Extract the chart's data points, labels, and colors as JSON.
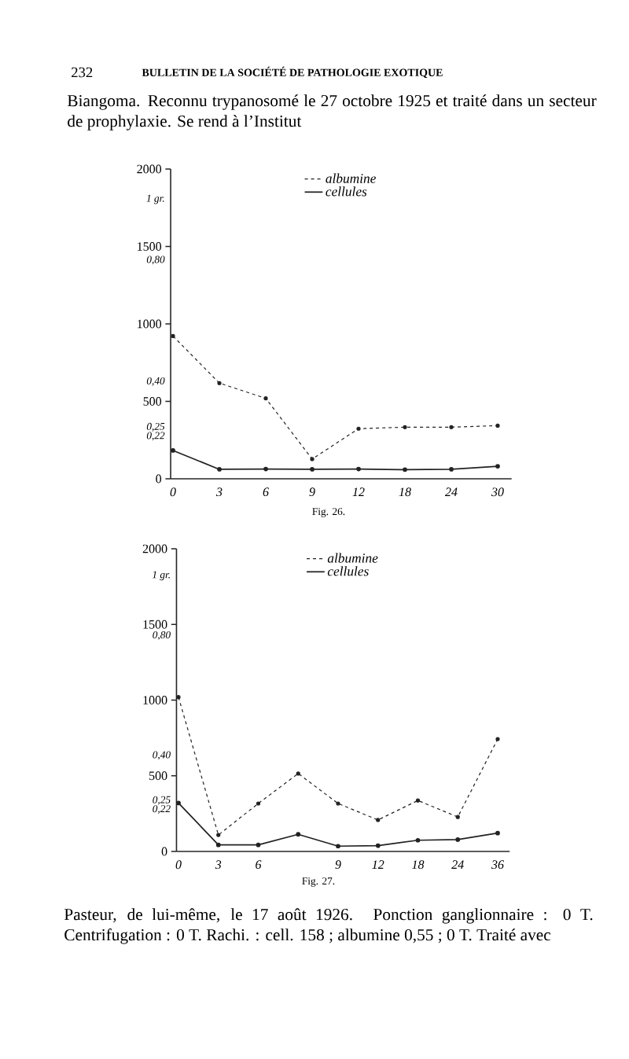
{
  "chart_data": [
    {
      "type": "line",
      "categories": [
        "0",
        "3",
        "6",
        "9",
        "12",
        "18",
        "24",
        "30"
      ],
      "series": [
        {
          "name": "albumine",
          "color": "#222222",
          "line_style": "dashed",
          "axis": "y2",
          "values": [
            0.55,
            0.395,
            0.345,
            0.145,
            0.245,
            0.25,
            0.25,
            0.255
          ]
        },
        {
          "name": "cellules",
          "color": "#222222",
          "line_style": "solid",
          "values": [
            183,
            61,
            63,
            61,
            63,
            59,
            61,
            81
          ]
        }
      ],
      "ylim": [
        0,
        2000
      ],
      "yticks": [
        0,
        500,
        1000,
        1500,
        2000
      ],
      "y2lim": [
        0.08,
        1.1
      ],
      "y2ticks": [
        {
          "value": 1,
          "label": "1 gr."
        },
        {
          "value": 0.8,
          "label": "0,80"
        },
        {
          "value": 0.4,
          "label": "0,40"
        },
        {
          "value": 0.25,
          "label": "0,25"
        },
        {
          "value": 0.22,
          "label": "0,22"
        }
      ],
      "marker": "circle",
      "legend": "top",
      "annotations": [
        "232",
        "BULLETIN DE LA SOCIÉTÉ DE PATHOLOGIE EXOTIQUE",
        "Biangoma. Reconnu trypanosomé le 27 octobre 1925 et traité dans un secteur de prophylaxie. Se rend à l’Institut",
        "Fig. 26."
      ]
    },
    {
      "type": "line",
      "categories": [
        "0",
        "3",
        "6",
        null,
        "9",
        "12",
        "18",
        "24",
        "36"
      ],
      "series": [
        {
          "name": "albumine",
          "color": "#222222",
          "line_style": "dashed",
          "axis": "y2",
          "values": [
            0.595,
            0.135,
            0.24,
            0.34,
            0.24,
            0.185,
            0.25,
            0.195,
            0.455
          ]
        },
        {
          "name": "cellules",
          "color": "#222222",
          "line_style": "solid",
          "values": [
            320,
            43,
            43,
            113,
            35,
            38,
            74,
            78,
            121
          ]
        }
      ],
      "ylim": [
        0,
        2000
      ],
      "yticks": [
        0,
        500,
        1000,
        1500,
        2000
      ],
      "y2lim": [
        0.08,
        1.09
      ],
      "y2ticks": [
        {
          "value": 1,
          "label": "1 gr."
        },
        {
          "value": 0.8,
          "label": "0,80"
        },
        {
          "value": 0.4,
          "label": "0,40"
        },
        {
          "value": 0.25,
          "label": "0,25"
        },
        {
          "value": 0.22,
          "label": "0,22"
        }
      ],
      "marker": "circle",
      "legend": "top",
      "annotations": [
        "Fig. 27.",
        "Pasteur, de lui-même, le 17 août 1926. Ponction ganglionnaire : 0 T. Centrifugation : 0 T. Rachi. : cell. 158 ; albumine 0,55 ; 0 T. Traité avec"
      ]
    }
  ]
}
